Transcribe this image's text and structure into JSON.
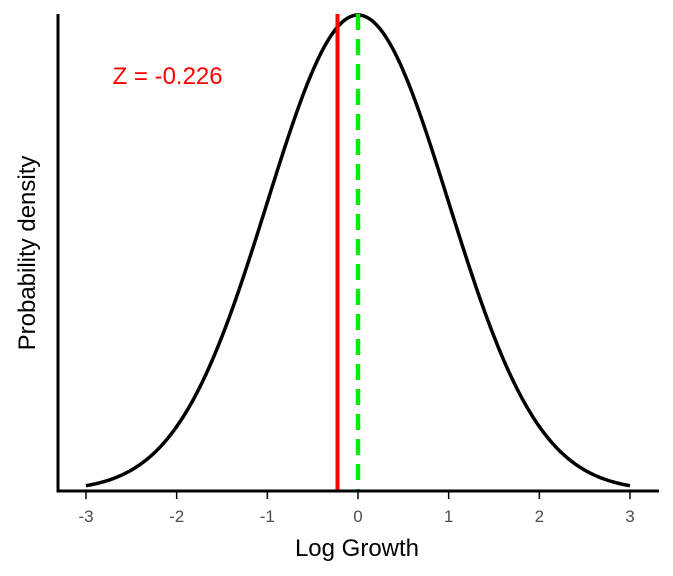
{
  "chart_data": {
    "type": "line",
    "title": "",
    "xlabel": "Log Growth",
    "ylabel": "Probability density",
    "xlim": [
      -3,
      3
    ],
    "x_ticks": [
      -3,
      -2,
      -1,
      0,
      1,
      2,
      3
    ],
    "x_tick_labels": [
      "-3",
      "-2",
      "-1",
      "0",
      "1",
      "2",
      "3"
    ],
    "y_ticks_shown": false,
    "grid": false,
    "legend": "none",
    "series": [
      {
        "distribution": "standard normal density",
        "mean": 0,
        "sd": 1,
        "x_range": [
          -3,
          3
        ],
        "color": "#000000"
      }
    ],
    "vertical_lines": [
      {
        "x": -0.226,
        "color": "#ff0000",
        "style": "solid"
      },
      {
        "x": 0,
        "color": "#00ee00",
        "style": "dashed"
      }
    ],
    "annotation": {
      "text": "Z = -0.226",
      "x": -2.1,
      "color": "#ff0000"
    }
  }
}
